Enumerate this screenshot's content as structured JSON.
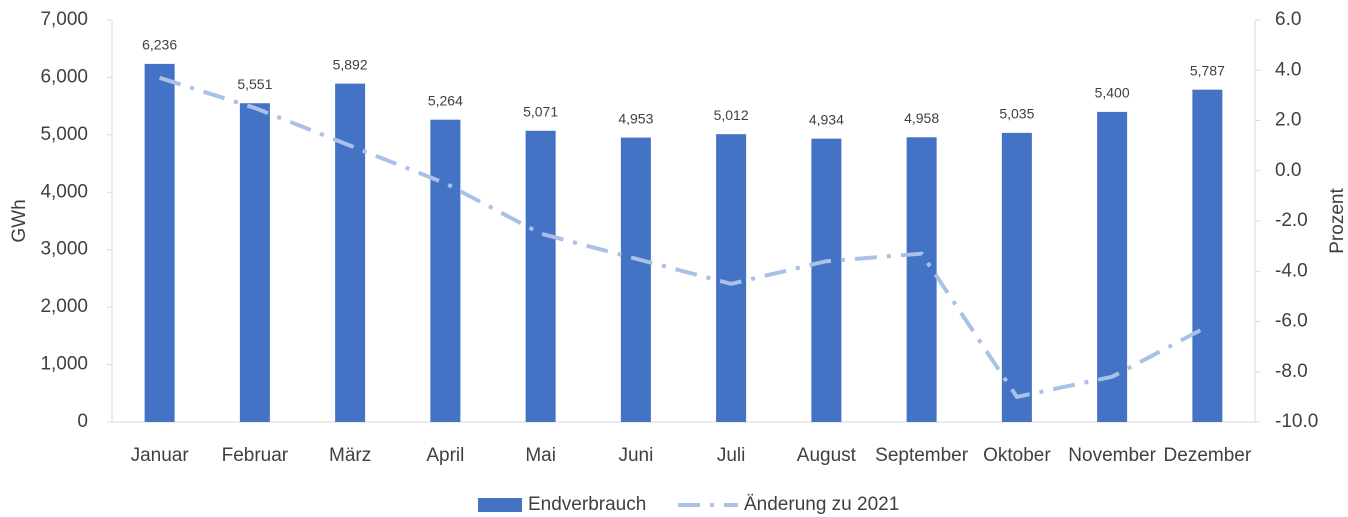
{
  "chart_data": {
    "type": "bar",
    "categories": [
      "Januar",
      "Februar",
      "März",
      "April",
      "Mai",
      "Juni",
      "Juli",
      "August",
      "September",
      "Oktober",
      "November",
      "Dezember"
    ],
    "series": [
      {
        "name": "Endverbrauch",
        "color": "#4472c4",
        "type": "bar",
        "values": [
          6236,
          5551,
          5892,
          5264,
          5071,
          4953,
          5012,
          4934,
          4958,
          5035,
          5400,
          5787
        ],
        "value_labels": [
          "6,236",
          "5,551",
          "5,892",
          "5,264",
          "5,071",
          "4,953",
          "5,012",
          "4,934",
          "4,958",
          "5,035",
          "5,400",
          "5,787"
        ]
      },
      {
        "name": "Änderung zu 2021",
        "color": "#a9c1e6",
        "type": "line",
        "axis": "y2",
        "values": [
          3.7,
          2.5,
          1.0,
          -0.5,
          -2.5,
          -3.5,
          -4.5,
          -3.6,
          -3.3,
          -9.0,
          -8.2,
          -6.2
        ]
      }
    ],
    "ylabel": "GWh",
    "y2label": "Prozent",
    "ylim": [
      0,
      7000
    ],
    "yticks": [
      0,
      {
        "value": 1000,
        "label": "1,000"
      },
      {
        "value": 2000,
        "label": "2,000"
      },
      {
        "value": 3000,
        "label": "3,000"
      },
      {
        "value": 4000,
        "label": "4,000"
      },
      {
        "value": 5000,
        "label": "5,000"
      },
      {
        "value": 6000,
        "label": "6,000"
      },
      {
        "value": 7000,
        "label": "7,000"
      }
    ],
    "y2lim": [
      -10,
      6
    ],
    "y2ticks": [
      {
        "value": -10,
        "label": "-10.0"
      },
      {
        "value": -8,
        "label": "-8.0"
      },
      {
        "value": -6,
        "label": "-6.0"
      },
      {
        "value": -4,
        "label": "-4.0"
      },
      {
        "value": -2,
        "label": "-2.0"
      },
      {
        "value": 0,
        "label": "0.0"
      },
      {
        "value": 2,
        "label": "2.0"
      },
      {
        "value": 4,
        "label": "4.0"
      },
      {
        "value": 6,
        "label": "6.0"
      }
    ],
    "legend": "bottom"
  }
}
